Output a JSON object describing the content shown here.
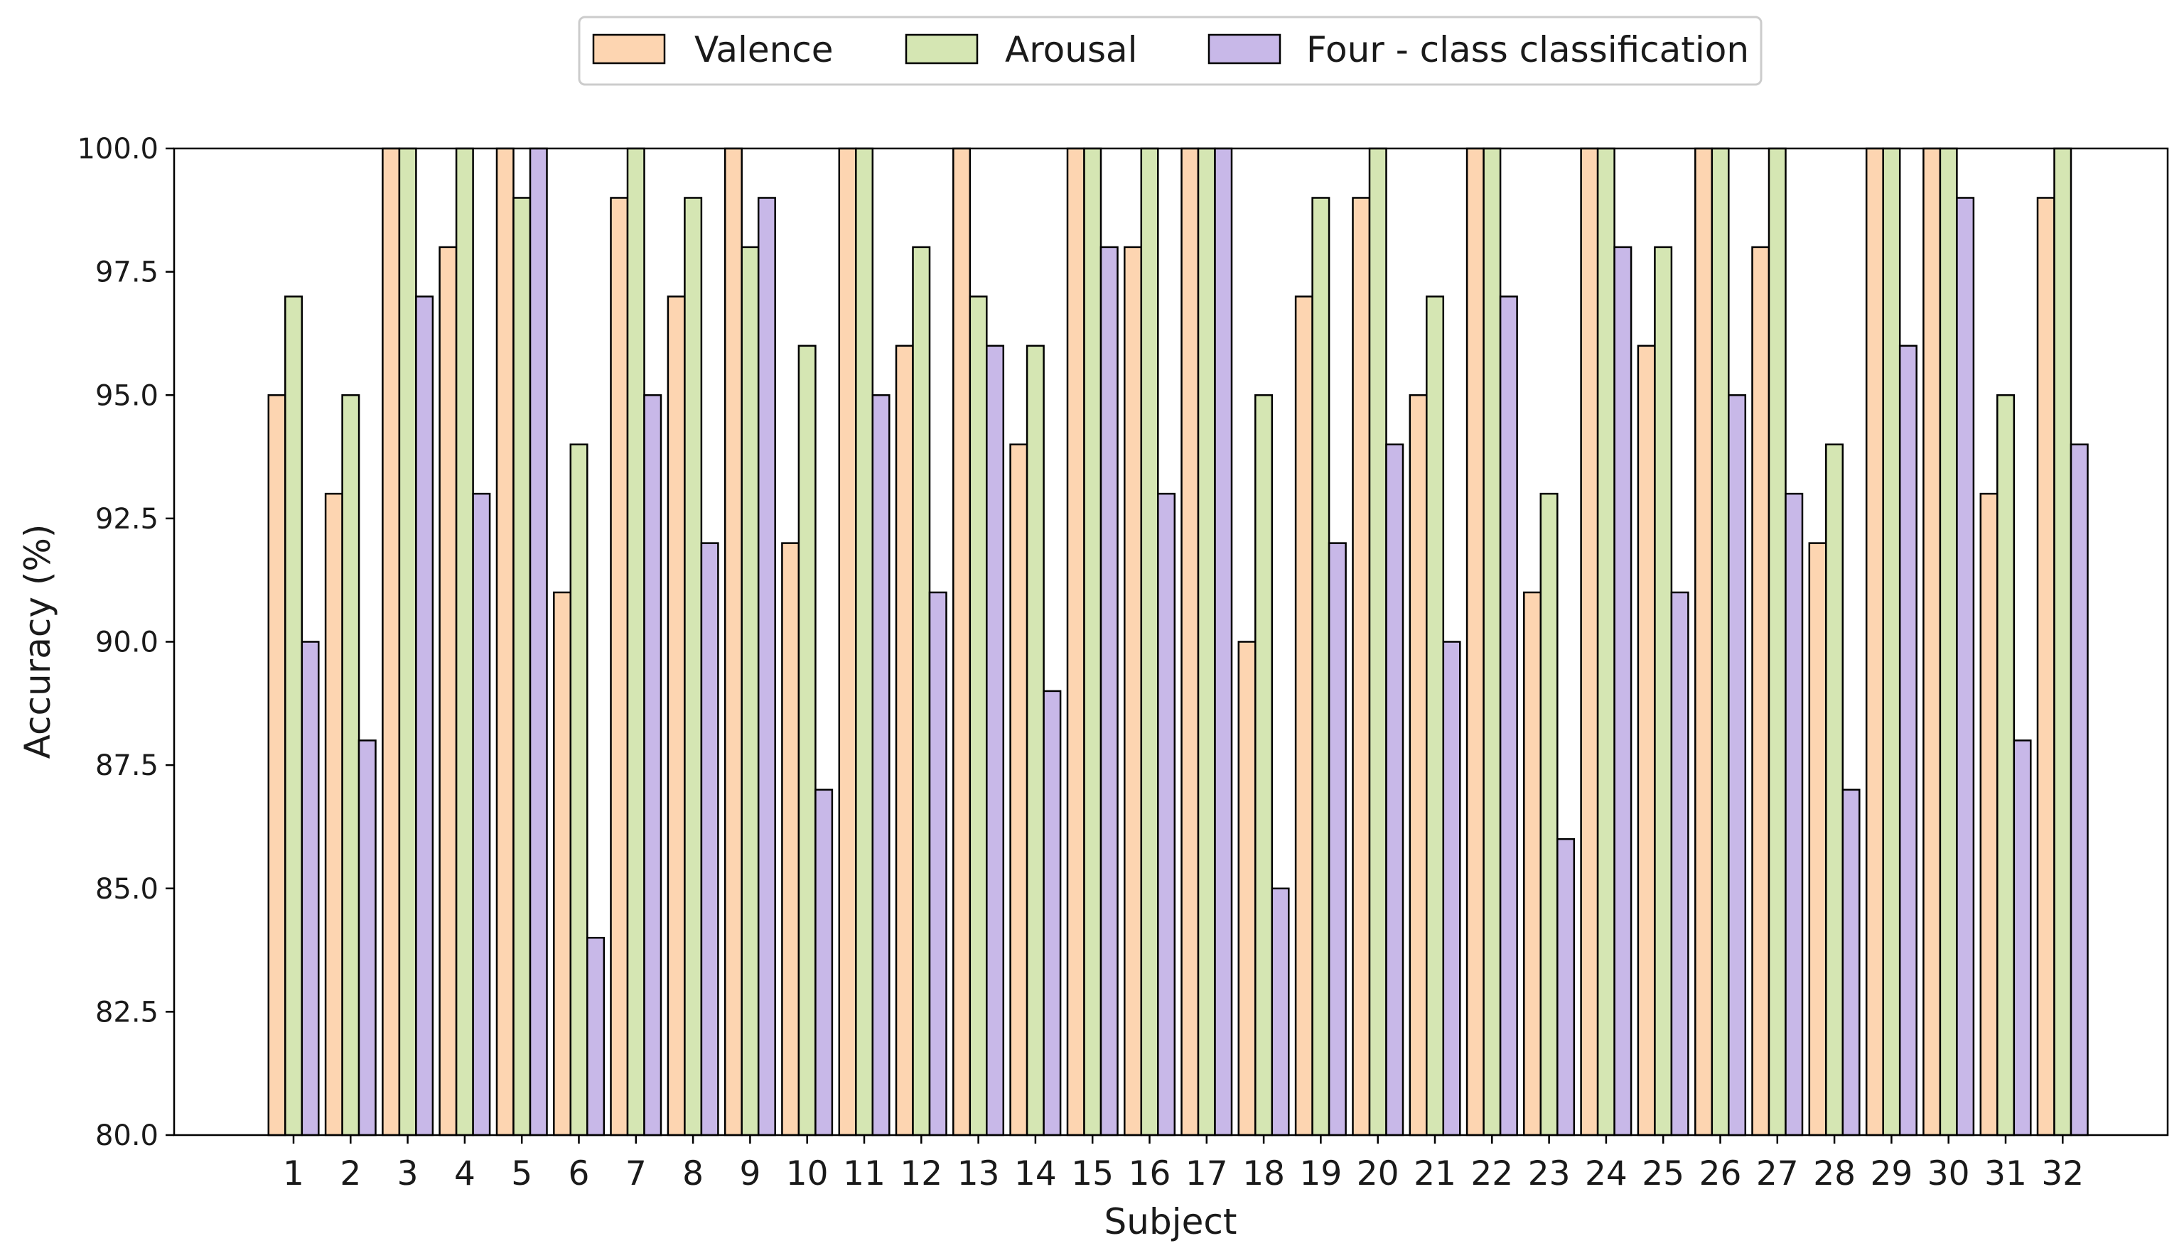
{
  "chart_data": {
    "type": "bar",
    "title": "",
    "xlabel": "Subject",
    "ylabel": "Accuracy (%)",
    "ylim": [
      80,
      100
    ],
    "yticks": [
      "80.0",
      "82.5",
      "85.0",
      "87.5",
      "90.0",
      "92.5",
      "95.0",
      "97.5",
      "100.0"
    ],
    "categories": [
      "1",
      "2",
      "3",
      "4",
      "5",
      "6",
      "7",
      "8",
      "9",
      "10",
      "11",
      "12",
      "13",
      "14",
      "15",
      "16",
      "17",
      "18",
      "19",
      "20",
      "21",
      "22",
      "23",
      "24",
      "25",
      "26",
      "27",
      "28",
      "29",
      "30",
      "31",
      "32"
    ],
    "series": [
      {
        "name": "Valence",
        "color": "#fdd5b1",
        "values": [
          95,
          93,
          100,
          98,
          100,
          91,
          99,
          97,
          100,
          92,
          100,
          96,
          100,
          94,
          100,
          98,
          100,
          90,
          97,
          99,
          95,
          100,
          91,
          100,
          96,
          100,
          98,
          92,
          100,
          100,
          93,
          99
        ]
      },
      {
        "name": "Arousal",
        "color": "#d5e6b3",
        "values": [
          97,
          95,
          100,
          100,
          99,
          94,
          100,
          99,
          98,
          96,
          100,
          98,
          97,
          96,
          100,
          100,
          100,
          95,
          99,
          100,
          97,
          100,
          93,
          100,
          98,
          100,
          100,
          94,
          100,
          100,
          95,
          100
        ]
      },
      {
        "name": "Four - class classification",
        "color": "#c8b8e8",
        "values": [
          90,
          88,
          97,
          93,
          100,
          84,
          95,
          92,
          99,
          87,
          95,
          91,
          96,
          89,
          98,
          93,
          100,
          85,
          92,
          94,
          90,
          97,
          86,
          98,
          91,
          95,
          93,
          87,
          96,
          99,
          88,
          94
        ]
      }
    ],
    "legend_position": "top-center",
    "grid": false
  }
}
